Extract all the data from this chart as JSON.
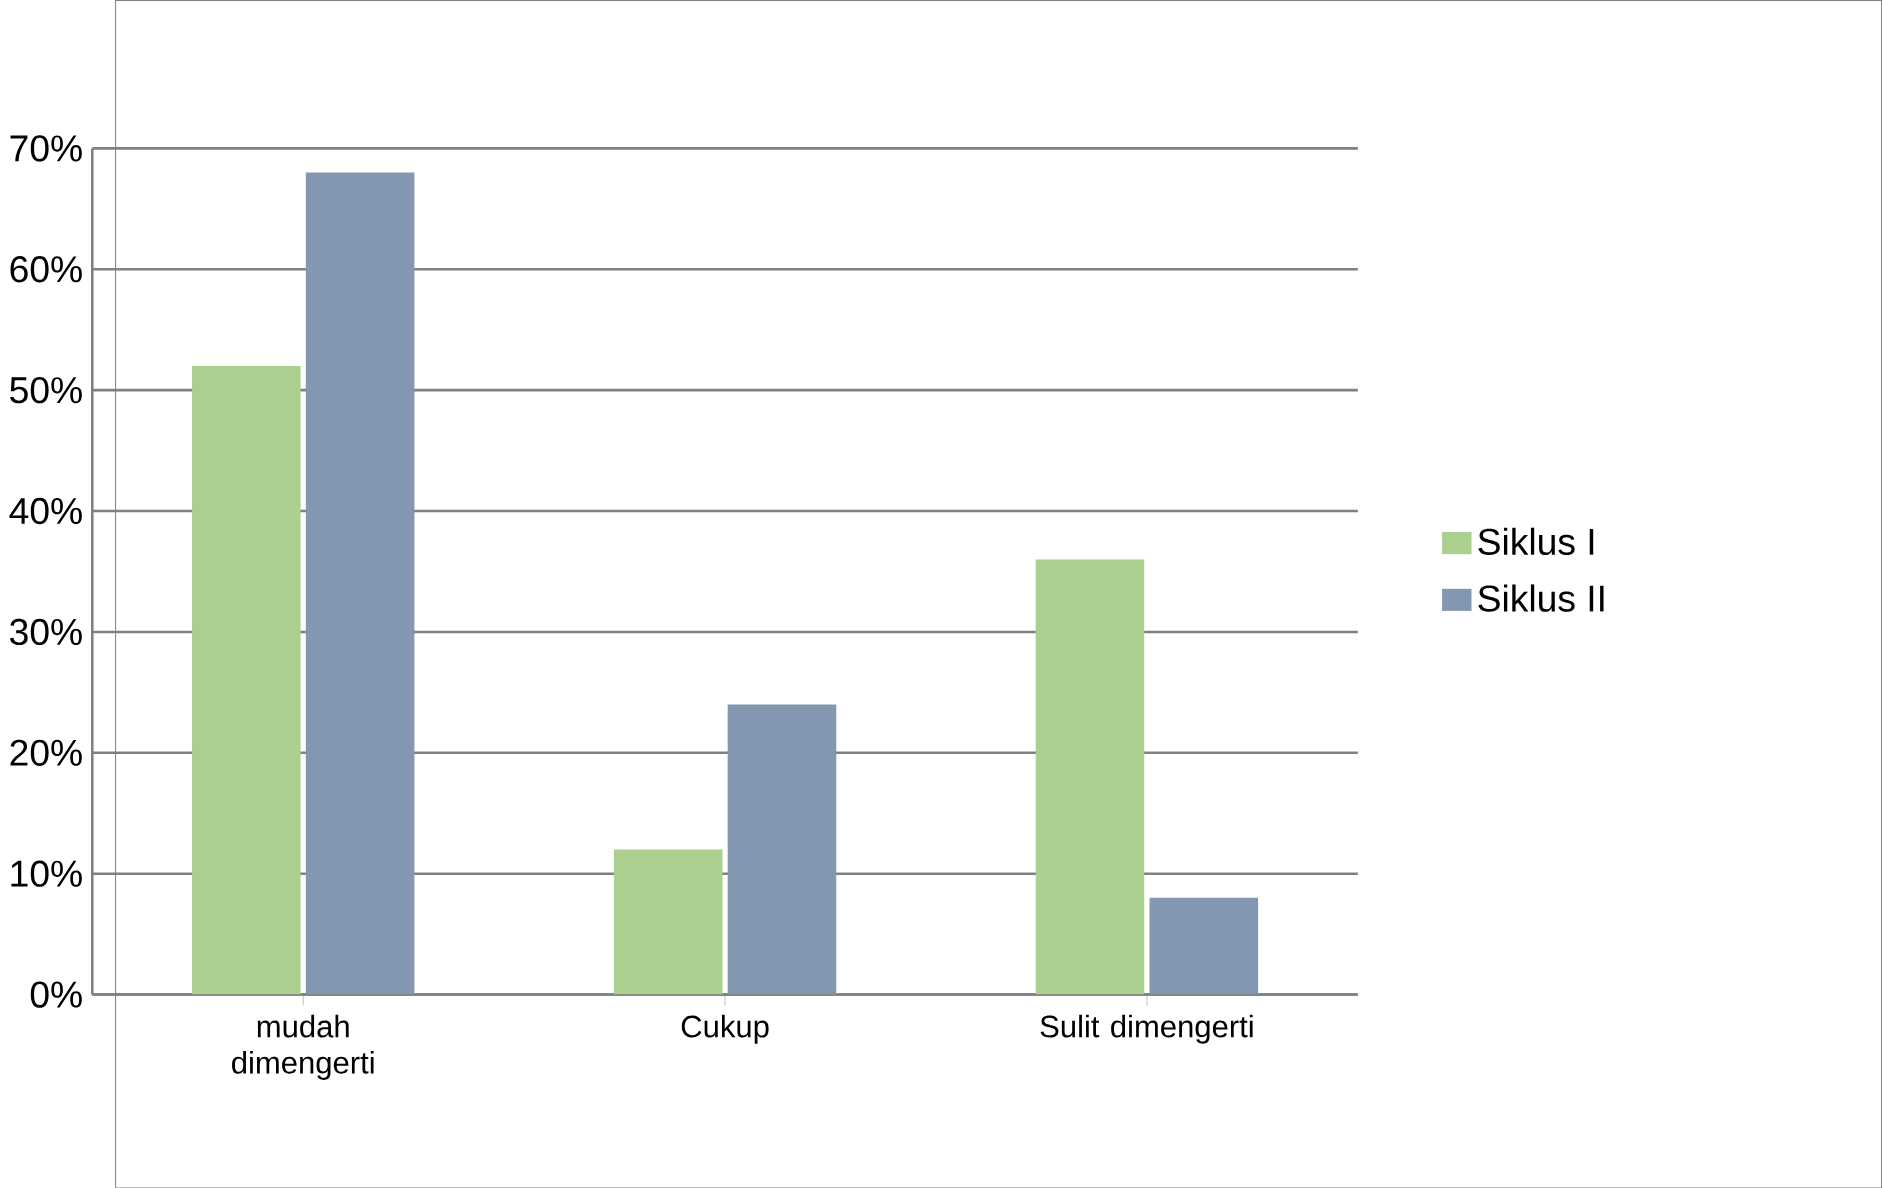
{
  "chart_data": {
    "type": "bar",
    "categories": [
      "mudah dimengerti",
      "Cukup",
      "Sulit dimengerti"
    ],
    "series": [
      {
        "name": "Siklus I",
        "color": "#abcf8e",
        "values": [
          52,
          12,
          36
        ]
      },
      {
        "name": "Siklus II",
        "color": "#8497b0",
        "values": [
          68,
          24,
          8
        ]
      }
    ],
    "ylim": [
      0,
      70
    ],
    "yticks": [
      {
        "value": 0,
        "label": "0%"
      },
      {
        "value": 10,
        "label": "10%"
      },
      {
        "value": 20,
        "label": "20%"
      },
      {
        "value": 30,
        "label": "30%"
      },
      {
        "value": 40,
        "label": "40%"
      },
      {
        "value": 50,
        "label": "50%"
      },
      {
        "value": 60,
        "label": "60%"
      },
      {
        "value": 70,
        "label": "70%"
      }
    ],
    "grid": "y",
    "legend": "right"
  }
}
